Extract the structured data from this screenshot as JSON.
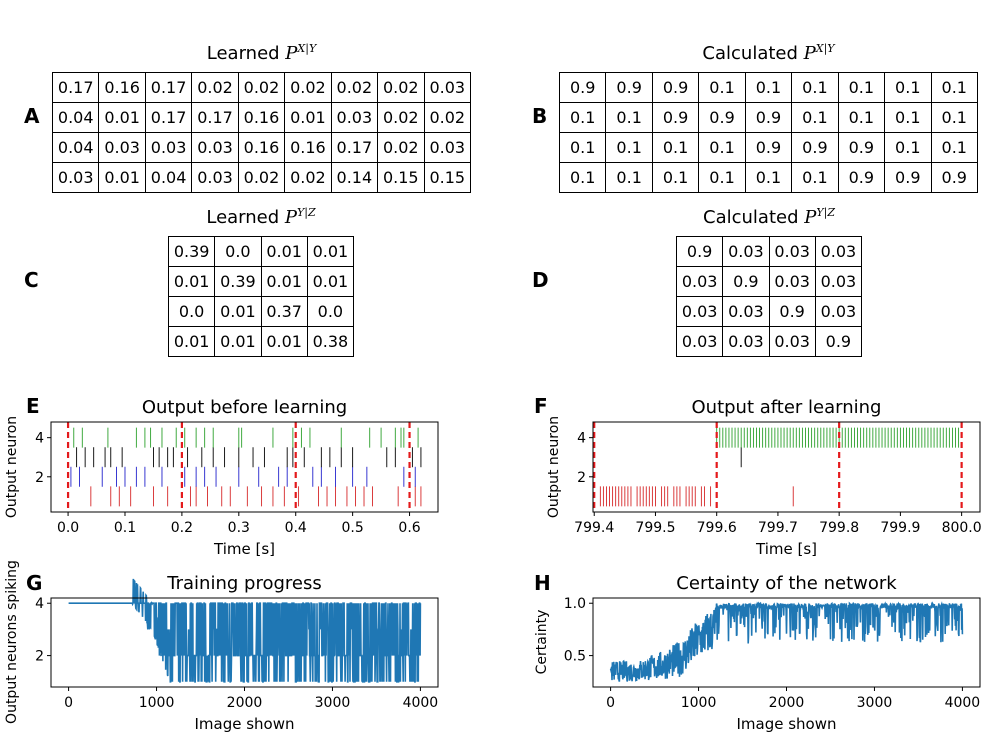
{
  "chart_data": [
    {
      "panel": "A",
      "type": "table",
      "title_prefix": "Learned ",
      "title_var": "P",
      "title_sup": "X|Y",
      "rows": [
        [
          "0.17",
          "0.16",
          "0.17",
          "0.02",
          "0.02",
          "0.02",
          "0.02",
          "0.02",
          "0.03"
        ],
        [
          "0.04",
          "0.01",
          "0.17",
          "0.17",
          "0.16",
          "0.01",
          "0.03",
          "0.02",
          "0.02"
        ],
        [
          "0.04",
          "0.03",
          "0.03",
          "0.03",
          "0.16",
          "0.16",
          "0.17",
          "0.02",
          "0.03"
        ],
        [
          "0.03",
          "0.01",
          "0.04",
          "0.03",
          "0.02",
          "0.02",
          "0.14",
          "0.15",
          "0.15"
        ]
      ]
    },
    {
      "panel": "B",
      "type": "table",
      "title_prefix": "Calculated ",
      "title_var": "P",
      "title_sup": "X|Y",
      "rows": [
        [
          "0.9",
          "0.9",
          "0.9",
          "0.1",
          "0.1",
          "0.1",
          "0.1",
          "0.1",
          "0.1"
        ],
        [
          "0.1",
          "0.1",
          "0.9",
          "0.9",
          "0.9",
          "0.1",
          "0.1",
          "0.1",
          "0.1"
        ],
        [
          "0.1",
          "0.1",
          "0.1",
          "0.1",
          "0.9",
          "0.9",
          "0.9",
          "0.1",
          "0.1"
        ],
        [
          "0.1",
          "0.1",
          "0.1",
          "0.1",
          "0.1",
          "0.1",
          "0.9",
          "0.9",
          "0.9"
        ]
      ]
    },
    {
      "panel": "C",
      "type": "table",
      "title_prefix": "Learned ",
      "title_var": "P",
      "title_sup": "Y|Z",
      "rows": [
        [
          "0.39",
          "0.0",
          "0.01",
          "0.01"
        ],
        [
          "0.01",
          "0.39",
          "0.01",
          "0.01"
        ],
        [
          "0.0",
          "0.01",
          "0.37",
          "0.0"
        ],
        [
          "0.01",
          "0.01",
          "0.01",
          "0.38"
        ]
      ]
    },
    {
      "panel": "D",
      "type": "table",
      "title_prefix": "Calculated ",
      "title_var": "P",
      "title_sup": "Y|Z",
      "rows": [
        [
          "0.9",
          "0.03",
          "0.03",
          "0.03"
        ],
        [
          "0.03",
          "0.9",
          "0.03",
          "0.03"
        ],
        [
          "0.03",
          "0.03",
          "0.9",
          "0.03"
        ],
        [
          "0.03",
          "0.03",
          "0.03",
          "0.9"
        ]
      ]
    },
    {
      "panel": "E",
      "type": "scatter",
      "title": "Output before learning",
      "xlabel": "Time [s]",
      "ylabel": "Output neuron",
      "xlim": [
        -0.03,
        0.65
      ],
      "ylim": [
        0.2,
        4.8
      ],
      "xticks": [
        0.0,
        0.1,
        0.2,
        0.3,
        0.4,
        0.5,
        0.6
      ],
      "xtick_labels": [
        "0.0",
        "0.1",
        "0.2",
        "0.3",
        "0.4",
        "0.5",
        "0.6"
      ],
      "yticks": [
        2,
        4
      ],
      "ytick_labels": [
        "2",
        "4"
      ],
      "vlines": [
        0.0,
        0.2,
        0.4,
        0.6
      ],
      "series": [
        {
          "neuron": 1,
          "color": "#d62728",
          "times": [
            0.04,
            0.075,
            0.09,
            0.11,
            0.15,
            0.175,
            0.215,
            0.225,
            0.245,
            0.27,
            0.285,
            0.315,
            0.34,
            0.36,
            0.38,
            0.405,
            0.44,
            0.455,
            0.47,
            0.49,
            0.505,
            0.52,
            0.535,
            0.58,
            0.61,
            0.62
          ]
        },
        {
          "neuron": 2,
          "color": "#2222cc",
          "times": [
            0.005,
            0.02,
            0.06,
            0.085,
            0.1,
            0.12,
            0.135,
            0.165,
            0.205,
            0.225,
            0.24,
            0.26,
            0.3,
            0.335,
            0.37,
            0.385,
            0.43,
            0.445,
            0.47,
            0.5,
            0.525,
            0.59,
            0.61
          ]
        },
        {
          "neuron": 3,
          "color": "#000000",
          "times": [
            0.015,
            0.03,
            0.045,
            0.065,
            0.075,
            0.095,
            0.15,
            0.16,
            0.175,
            0.185,
            0.21,
            0.235,
            0.255,
            0.275,
            0.3,
            0.325,
            0.345,
            0.385,
            0.395,
            0.415,
            0.445,
            0.46,
            0.48,
            0.5,
            0.56,
            0.575,
            0.605,
            0.62
          ]
        },
        {
          "neuron": 4,
          "color": "#2ca02c",
          "times": [
            0.01,
            0.025,
            0.07,
            0.12,
            0.135,
            0.145,
            0.165,
            0.19,
            0.205,
            0.225,
            0.24,
            0.255,
            0.3,
            0.305,
            0.36,
            0.395,
            0.41,
            0.425,
            0.48,
            0.53,
            0.55,
            0.575,
            0.585,
            0.59,
            0.615
          ]
        }
      ]
    },
    {
      "panel": "F",
      "type": "scatter",
      "title": "Output after learning",
      "xlabel": "Time [s]",
      "ylabel": "Output neuron",
      "xlim": [
        799.398,
        800.03
      ],
      "ylim": [
        0.2,
        4.8
      ],
      "xticks": [
        799.4,
        799.5,
        799.6,
        799.7,
        799.8,
        799.9,
        800.0
      ],
      "xtick_labels": [
        "799.4",
        "799.5",
        "799.6",
        "799.7",
        "799.8",
        "799.9",
        "800.0"
      ],
      "yticks": [
        2,
        4
      ],
      "ytick_labels": [
        "2",
        "4"
      ],
      "vlines": [
        799.4,
        799.6,
        799.8,
        800.0
      ],
      "series": [
        {
          "neuron": 1,
          "color": "#d62728",
          "times": [
            799.41,
            799.415,
            799.42,
            799.425,
            799.43,
            799.435,
            799.44,
            799.445,
            799.45,
            799.455,
            799.46,
            799.47,
            799.475,
            799.48,
            799.485,
            799.49,
            799.495,
            799.5,
            799.51,
            799.515,
            799.52,
            799.53,
            799.535,
            799.54,
            799.55,
            799.555,
            799.56,
            799.565,
            799.575,
            799.58,
            799.59,
            799.725
          ]
        },
        {
          "neuron": 3,
          "color": "#000000",
          "times": [
            799.64
          ]
        },
        {
          "neuron": 4,
          "color": "#2ca02c",
          "times": [
            799.6,
            799.605,
            799.61,
            799.615,
            799.62,
            799.625,
            799.63,
            799.635,
            799.64,
            799.645,
            799.65,
            799.655,
            799.66,
            799.665,
            799.67,
            799.675,
            799.68,
            799.685,
            799.69,
            799.695,
            799.7,
            799.705,
            799.71,
            799.715,
            799.72,
            799.725,
            799.73,
            799.735,
            799.74,
            799.745,
            799.75,
            799.755,
            799.76,
            799.765,
            799.77,
            799.775,
            799.78,
            799.785,
            799.79,
            799.795,
            799.8,
            799.805,
            799.81,
            799.815,
            799.82,
            799.825,
            799.83,
            799.835,
            799.84,
            799.845,
            799.85,
            799.855,
            799.86,
            799.865,
            799.87,
            799.875,
            799.88,
            799.885,
            799.89,
            799.895,
            799.9,
            799.905,
            799.91,
            799.915,
            799.92,
            799.925,
            799.93,
            799.935,
            799.94,
            799.945,
            799.95,
            799.955,
            799.96,
            799.965,
            799.97,
            799.975,
            799.98,
            799.985,
            799.99,
            799.995
          ]
        }
      ]
    },
    {
      "panel": "G",
      "type": "line",
      "title": "Training progress",
      "xlabel": "Image shown",
      "ylabel": "Output neurons spiking",
      "xlim": [
        -200,
        4200
      ],
      "ylim": [
        0.8,
        4.2
      ],
      "xticks": [
        0,
        1000,
        2000,
        3000,
        4000
      ],
      "xtick_labels": [
        "0",
        "1000",
        "2000",
        "3000",
        "4000"
      ],
      "yticks": [
        2,
        4
      ],
      "ytick_labels": [
        "2",
        "4"
      ],
      "color": "#1f77b4",
      "trend": {
        "x": [
          0,
          340,
          720,
          950,
          1150,
          1300,
          2000,
          3000,
          4000
        ],
        "high": [
          4,
          4,
          4,
          4,
          4,
          4,
          4,
          4,
          4
        ],
        "low": [
          4,
          4,
          4,
          3,
          1,
          1,
          1,
          1,
          1
        ]
      }
    },
    {
      "panel": "H",
      "type": "line",
      "title": "Certainty of the network",
      "xlabel": "Image shown",
      "ylabel": "Certainty",
      "xlim": [
        -200,
        4200
      ],
      "ylim": [
        0.2,
        1.05
      ],
      "xticks": [
        0,
        1000,
        2000,
        3000,
        4000
      ],
      "xtick_labels": [
        "0",
        "1000",
        "2000",
        "3000",
        "4000"
      ],
      "yticks": [
        0.5,
        1.0
      ],
      "ytick_labels": [
        "0.5",
        "1.0"
      ],
      "color": "#1f77b4",
      "trend": {
        "x": [
          0,
          300,
          600,
          800,
          1000,
          1200,
          1500,
          2000,
          3000,
          4000
        ],
        "high": [
          0.45,
          0.45,
          0.55,
          0.65,
          0.85,
          1.0,
          1.0,
          1.0,
          1.0,
          1.0
        ],
        "low": [
          0.25,
          0.25,
          0.27,
          0.3,
          0.45,
          0.55,
          0.6,
          0.65,
          0.62,
          0.6
        ]
      }
    }
  ]
}
